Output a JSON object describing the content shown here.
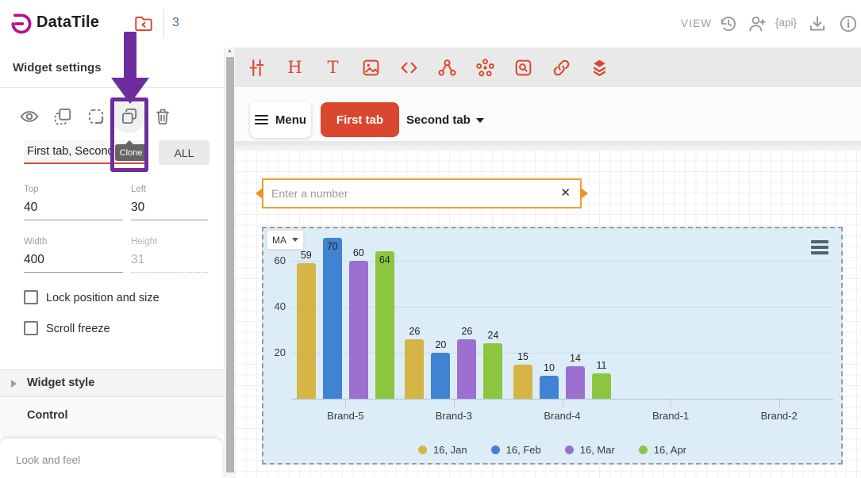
{
  "top_bar": {
    "brand": "DataTile",
    "board_count": "3",
    "view_label": "VIEW",
    "api_icon_label": "{api}",
    "icons": [
      "folder-back-icon",
      "history-icon",
      "add-user-icon",
      "api-icon",
      "download-icon",
      "info-icon"
    ]
  },
  "sidebar": {
    "title": "Widget settings",
    "toolbar_icons": [
      "visibility-icon",
      "copy-style-icon",
      "paste-style-icon",
      "clone-icon",
      "delete-icon"
    ],
    "clone_tooltip": "Clone",
    "tabs_input_value": "First tab, Second tab",
    "all_button": "ALL",
    "fields": {
      "top": {
        "label": "Top",
        "value": "40"
      },
      "left": {
        "label": "Left",
        "value": "30"
      },
      "width": {
        "label": "Width",
        "value": "400"
      },
      "height": {
        "label": "Height",
        "value": "31",
        "disabled": true
      }
    },
    "checkboxes": [
      {
        "label": "Lock position and size",
        "checked": false
      },
      {
        "label": "Scroll freeze",
        "checked": false
      }
    ],
    "sections": [
      {
        "label": "Widget style",
        "collapsed": true
      },
      {
        "label": "Control"
      }
    ],
    "footer": "Look and feel"
  },
  "builder": {
    "toolbar_icons": [
      "tune-icon",
      "heading-icon",
      "text-icon",
      "image-icon",
      "code-icon",
      "graph-icon",
      "cluster-icon",
      "search-widget-icon",
      "link-icon",
      "layers-icon"
    ],
    "menu_button": "Menu",
    "tabs": [
      {
        "label": "First tab",
        "active": true
      },
      {
        "label": "Second tab",
        "has_dropdown": true
      }
    ]
  },
  "canvas": {
    "number_input_placeholder": "Enter a number",
    "chart_dropdown": "MA"
  },
  "chart_data": {
    "type": "bar",
    "categories": [
      "Brand-5",
      "Brand-3",
      "Brand-4",
      "Brand-1",
      "Brand-2"
    ],
    "series": [
      {
        "name": "16, Jan",
        "color": "#d4b545",
        "values": [
          59,
          26,
          15,
          null,
          null
        ]
      },
      {
        "name": "16, Feb",
        "color": "#4183d3",
        "values": [
          70,
          20,
          10,
          null,
          null
        ]
      },
      {
        "name": "16, Mar",
        "color": "#9c6fd0",
        "values": [
          60,
          26,
          14,
          null,
          null
        ]
      },
      {
        "name": "16, Apr",
        "color": "#8cc63f",
        "values": [
          64,
          24,
          11,
          null,
          null
        ]
      }
    ],
    "yticks": [
      20,
      40,
      60
    ],
    "ylim": [
      0,
      74
    ],
    "xlabel": "",
    "ylabel": "",
    "title": "",
    "grid": true,
    "legend_position": "bottom"
  },
  "colors": {
    "accent_red": "#d9452c",
    "active_tab_red": "#d9472e",
    "annotation_purple": "#6d2d9c",
    "selection_orange": "#efa02c",
    "chart_background": "#ddedf7",
    "brand_magenta": "#b01490"
  }
}
